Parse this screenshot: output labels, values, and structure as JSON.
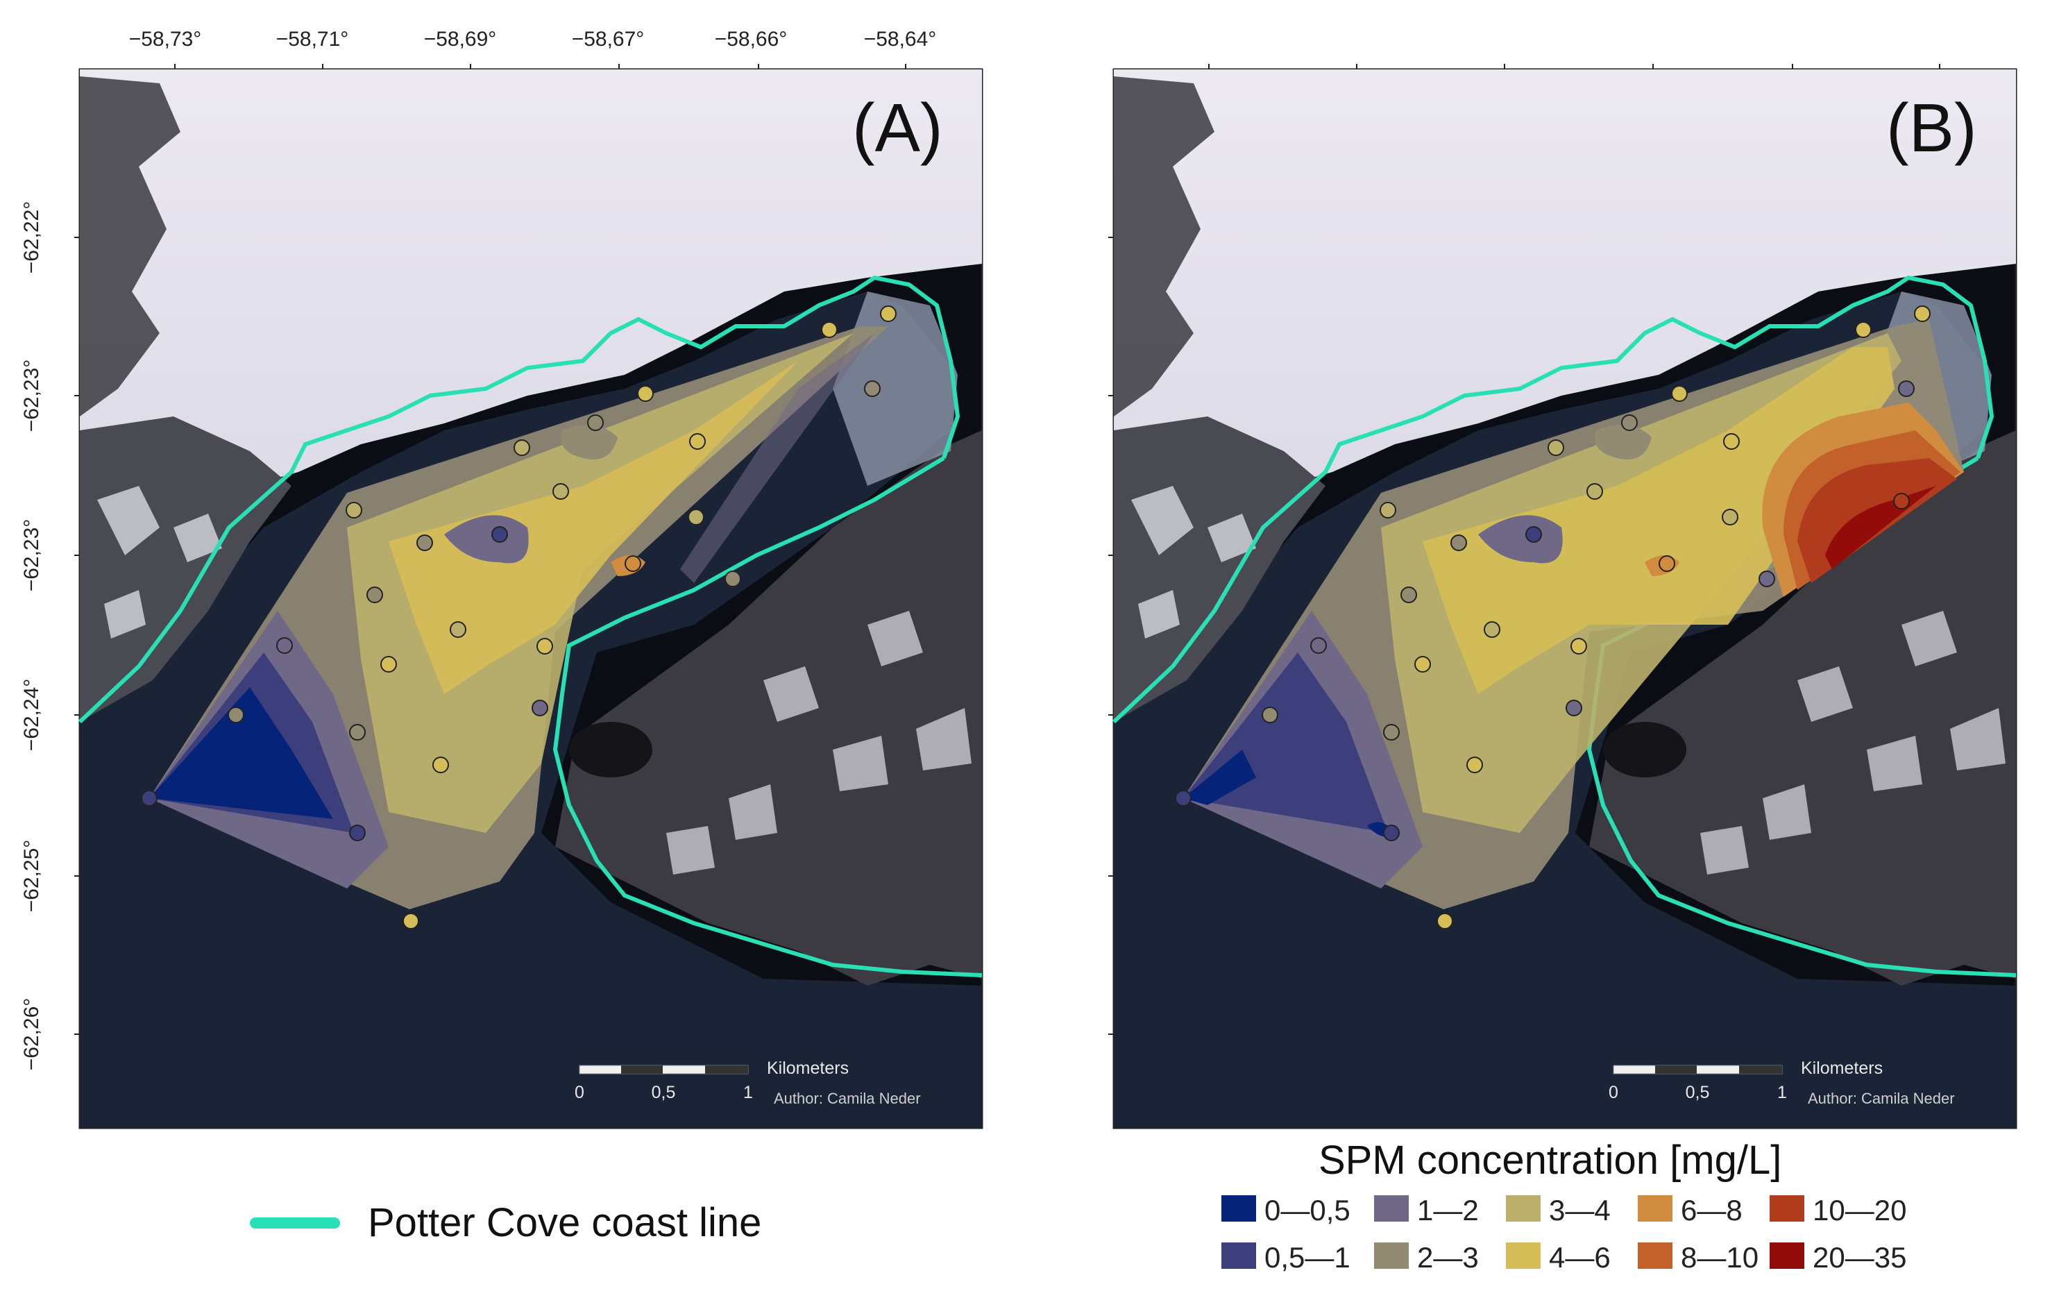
{
  "colors": {
    "coast": "#28e0b4",
    "class_0_0_5": "#06237a",
    "class_0_5_1": "#3d3f7d",
    "class_1_2": "#706887",
    "class_2_3": "#938a74",
    "class_3_4": "#bbb06b",
    "class_4_6": "#d5bd57",
    "class_6_8": "#d18d3f",
    "class_8_10": "#c2622a",
    "class_10_20": "#b03c1d",
    "class_20_35": "#940c0a"
  },
  "panel_a": {
    "label": "(A)",
    "x_ticks": [
      "−58,73°",
      "−58,71°",
      "−58,69°",
      "−58,67°",
      "−58,66°",
      "−58,64°"
    ],
    "y_ticks": [
      "−62,22°",
      "−62,23°",
      "−62,23°",
      "−62,24°",
      "−62,25°",
      "−62,26°"
    ],
    "scale_bar": {
      "title": "Kilometers",
      "labels": [
        "0",
        "0,5",
        "1"
      ],
      "author": "Author: Camila Neder"
    }
  },
  "panel_b": {
    "label": "(B)",
    "scale_bar": {
      "title": "Kilometers",
      "labels": [
        "0",
        "0,5",
        "1"
      ],
      "author": "Author: Camila Neder"
    }
  },
  "coast_legend": {
    "label": "Potter Cove coast line",
    "icon": "line-swatch"
  },
  "spm_legend": {
    "title": "SPM concentration [mg/L]",
    "classes": [
      {
        "label": "0—0,5",
        "color": "#06237a"
      },
      {
        "label": "0,5—1",
        "color": "#3d3f7d"
      },
      {
        "label": "1—2",
        "color": "#706887"
      },
      {
        "label": "2—3",
        "color": "#938a74"
      },
      {
        "label": "3—4",
        "color": "#bbb06b"
      },
      {
        "label": "4—6",
        "color": "#d5bd57"
      },
      {
        "label": "6—8",
        "color": "#d18d3f"
      },
      {
        "label": "8—10",
        "color": "#c2622a"
      },
      {
        "label": "10—20",
        "color": "#b03c1d"
      },
      {
        "label": "20—35",
        "color": "#940c0a"
      }
    ]
  }
}
